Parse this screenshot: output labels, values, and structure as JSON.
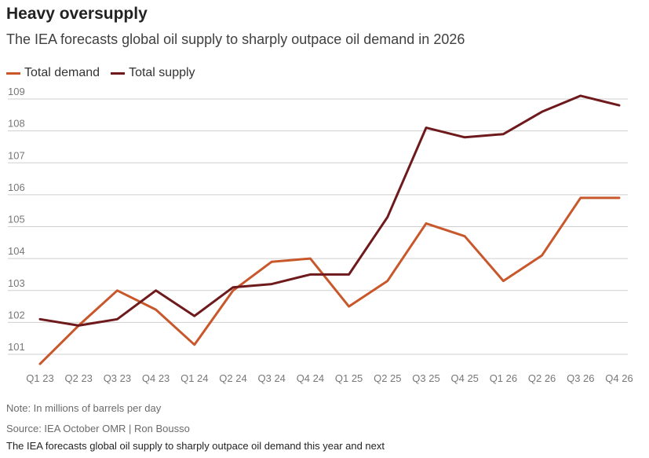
{
  "chart_data": {
    "type": "line",
    "title": "Heavy oversupply",
    "subtitle": "The IEA forecasts global oil supply to sharply outpace oil demand in 2026",
    "categories": [
      "Q1 23",
      "Q2 23",
      "Q3 23",
      "Q4 23",
      "Q1 24",
      "Q2 24",
      "Q3 24",
      "Q4 24",
      "Q1 25",
      "Q2 25",
      "Q3 25",
      "Q4 25",
      "Q1 26",
      "Q2 26",
      "Q3 26",
      "Q4 26"
    ],
    "series": [
      {
        "name": "Total demand",
        "color": "#c8582b",
        "values": [
          100.7,
          101.9,
          103.0,
          102.4,
          101.3,
          103.0,
          103.9,
          104.0,
          102.5,
          103.3,
          105.1,
          104.7,
          103.3,
          104.1,
          105.9,
          105.9
        ]
      },
      {
        "name": "Total supply",
        "color": "#6e1a1d",
        "values": [
          102.1,
          101.9,
          102.1,
          103.0,
          102.2,
          103.1,
          103.2,
          103.5,
          103.5,
          105.3,
          108.1,
          107.8,
          107.9,
          108.6,
          109.1,
          108.8
        ]
      }
    ],
    "yticks": [
      101,
      102,
      103,
      104,
      105,
      106,
      107,
      108,
      109
    ],
    "ylim": [
      100.6,
      109.3
    ],
    "xlabel": "",
    "ylabel": "",
    "grid": true
  },
  "footer": {
    "note": "Note: In millions of barrels per day",
    "source": "Source: IEA October OMR | Ron Bousso",
    "caption": "The IEA forecasts global oil supply to sharply outpace oil demand this year and next"
  }
}
